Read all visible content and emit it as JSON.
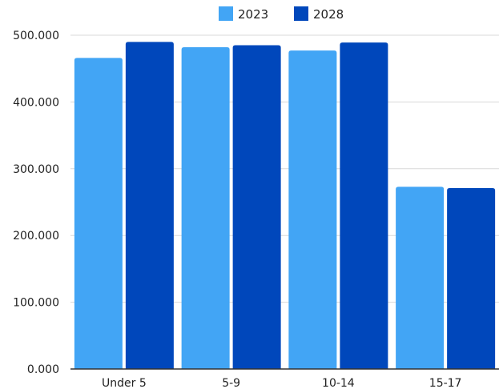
{
  "chart_data": {
    "type": "bar",
    "categories": [
      "Under 5",
      "5-9",
      "10-14",
      "15-17"
    ],
    "series": [
      {
        "name": "2023",
        "values": [
          466000,
          482000,
          477000,
          273000
        ],
        "color": "#42a5f5"
      },
      {
        "name": "2028",
        "values": [
          490000,
          485000,
          489000,
          271000
        ],
        "color": "#0047bb"
      }
    ],
    "ylim": [
      0,
      500000
    ],
    "yticks": [
      {
        "value": 0,
        "label": "0.000"
      },
      {
        "value": 100000,
        "label": "100.000"
      },
      {
        "value": 200000,
        "label": "200.000"
      },
      {
        "value": 300000,
        "label": "300.000"
      },
      {
        "value": 400000,
        "label": "400.000"
      },
      {
        "value": 500000,
        "label": "500.000"
      }
    ],
    "title": "",
    "xlabel": "",
    "ylabel": "",
    "legend_position": "top",
    "grid": true,
    "gridline_color": "#d9d9d9",
    "axis_color": "#333333"
  }
}
